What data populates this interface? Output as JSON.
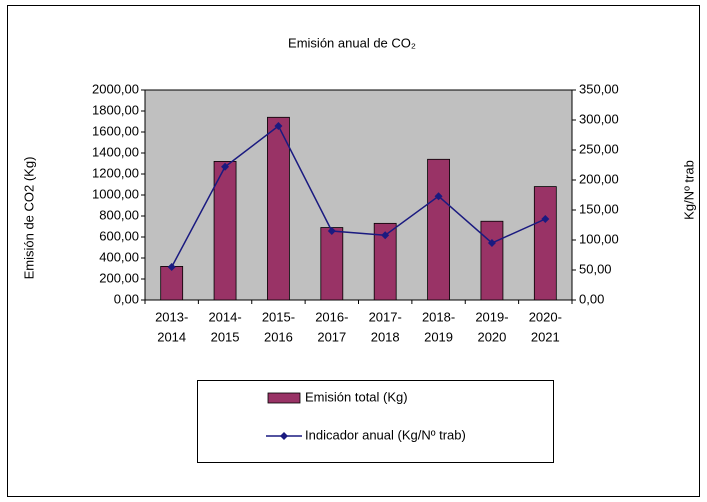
{
  "chart_data": {
    "type": "bar_line",
    "title": "Emisión anual de CO₂",
    "y_label": "Emisión de CO2 (Kg)",
    "y2_label": "Kg/Nº trab",
    "categories": [
      [
        "2013-",
        "2014"
      ],
      [
        "2014-",
        "2015"
      ],
      [
        "2015-",
        "2016"
      ],
      [
        "2016-",
        "2017"
      ],
      [
        "2017-",
        "2018"
      ],
      [
        "2018-",
        "2019"
      ],
      [
        "2019-",
        "2020"
      ],
      [
        "2020-",
        "2021"
      ]
    ],
    "series": [
      {
        "name": "Emisión total (Kg)",
        "type": "bar",
        "color": "#993366",
        "values": [
          320,
          1320,
          1740,
          690,
          730,
          1340,
          750,
          1080
        ]
      },
      {
        "name": "Indicador anual (Kg/Nº trab)",
        "type": "line",
        "axis": "y2",
        "color": "#1a1a80",
        "values": [
          55,
          222,
          290,
          115,
          108,
          173,
          95,
          135
        ]
      }
    ],
    "ylim": [
      0,
      2000
    ],
    "yticks": [
      {
        "value": 0,
        "label": "0,00"
      },
      {
        "value": 200,
        "label": "200,00"
      },
      {
        "value": 400,
        "label": "400,00"
      },
      {
        "value": 600,
        "label": "600,00"
      },
      {
        "value": 800,
        "label": "800,00"
      },
      {
        "value": 1000,
        "label": "1000,00"
      },
      {
        "value": 1200,
        "label": "1200,00"
      },
      {
        "value": 1400,
        "label": "1400,00"
      },
      {
        "value": 1600,
        "label": "1600,00"
      },
      {
        "value": 1800,
        "label": "1800,00"
      },
      {
        "value": 2000,
        "label": "2000,00"
      }
    ],
    "y2lim": [
      0,
      350
    ],
    "y2ticks": [
      {
        "value": 0,
        "label": "0,00"
      },
      {
        "value": 50,
        "label": "50,00"
      },
      {
        "value": 100,
        "label": "100,00"
      },
      {
        "value": 150,
        "label": "150,00"
      },
      {
        "value": 200,
        "label": "200,00"
      },
      {
        "value": 250,
        "label": "250,00"
      },
      {
        "value": 300,
        "label": "300,00"
      },
      {
        "value": 350,
        "label": "350,00"
      }
    ],
    "plot_background": "#c0c0c0",
    "grid": false
  }
}
